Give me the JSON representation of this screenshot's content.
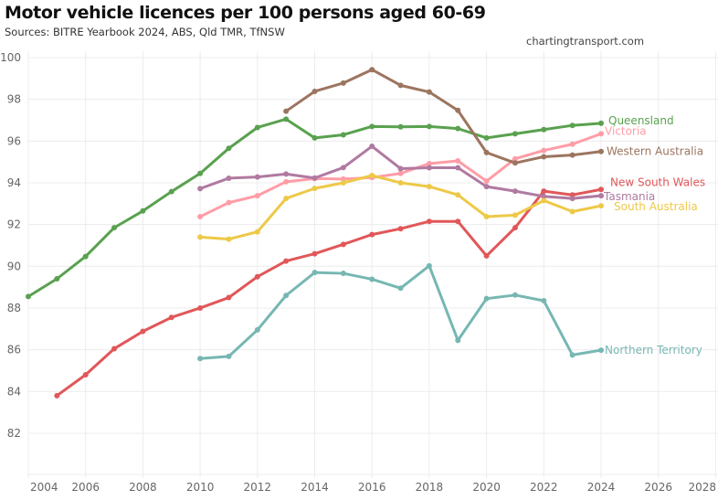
{
  "header": {
    "title": "Motor vehicle licences per 100 persons aged 60-69",
    "subtitle": "Sources: BITRE Yearbook 2024, ABS, Qld TMR, TfNSW",
    "credit": "chartingtransport.com"
  },
  "chart_data": {
    "type": "line",
    "title": "Motor vehicle licences per 100 persons aged 60-69",
    "subtitle": "Sources: BITRE Yearbook 2024, ABS, Qld TMR, TfNSW",
    "xlabel": "",
    "ylabel": "",
    "xlim": [
      2004,
      2028
    ],
    "ylim": [
      80,
      100
    ],
    "x_ticks": [
      "2004",
      "2006",
      "2008",
      "2010",
      "2012",
      "2014",
      "2016",
      "2018",
      "2020",
      "2022",
      "2024",
      "2026",
      "2028"
    ],
    "y_ticks": [
      "82",
      "84",
      "86",
      "88",
      "90",
      "92",
      "94",
      "96",
      "98",
      "100"
    ],
    "grid": true,
    "legend": "direct labels at right end of lines",
    "series": [
      {
        "name": "Queensland",
        "color": "#59a14f",
        "start_year": 2004,
        "values": [
          88.55,
          89.4,
          90.47,
          91.85,
          92.65,
          93.58,
          94.45,
          95.65,
          96.65,
          97.05,
          96.15,
          96.3,
          96.7,
          96.68,
          96.7,
          96.6,
          96.15,
          96.35,
          96.55,
          96.75,
          96.85
        ]
      },
      {
        "name": "Victoria",
        "color": "#ff9da7",
        "start_year": 2010,
        "values": [
          92.38,
          93.05,
          93.38,
          94.05,
          94.2,
          94.18,
          94.25,
          94.45,
          94.92,
          95.05,
          94.08,
          95.15,
          95.55,
          95.85,
          96.35
        ]
      },
      {
        "name": "Western Australia",
        "color": "#9c755f",
        "start_year": 2013,
        "values": [
          97.43,
          98.38,
          98.78,
          99.42,
          98.67,
          98.35,
          97.47,
          95.45,
          94.95,
          95.25,
          95.33,
          95.5
        ]
      },
      {
        "name": "New South Wales",
        "color": "#e15759",
        "start_year": 2005,
        "values": [
          83.8,
          84.8,
          86.05,
          86.88,
          87.55,
          88.0,
          88.5,
          89.5,
          90.25,
          90.6,
          91.05,
          91.52,
          91.8,
          92.15,
          92.15,
          90.5,
          91.85,
          93.6,
          93.42,
          93.68
        ]
      },
      {
        "name": "Tasmania",
        "color": "#b07aa1",
        "start_year": 2010,
        "values": [
          93.72,
          94.22,
          94.28,
          94.42,
          94.23,
          94.73,
          95.75,
          94.68,
          94.72,
          94.72,
          93.82,
          93.6,
          93.35,
          93.25,
          93.38
        ]
      },
      {
        "name": "South Australia",
        "color": "#edc948",
        "start_year": 2010,
        "values": [
          91.4,
          91.3,
          91.65,
          93.25,
          93.73,
          94.0,
          94.35,
          94.0,
          93.82,
          93.42,
          92.38,
          92.45,
          93.15,
          92.62,
          92.9
        ]
      },
      {
        "name": "Northern Territory",
        "color": "#76b7b2",
        "start_year": 2010,
        "values": [
          85.58,
          85.68,
          86.95,
          88.6,
          89.7,
          89.66,
          89.38,
          88.95,
          90.02,
          86.45,
          88.45,
          88.62,
          88.35,
          85.75,
          85.98
        ]
      }
    ]
  }
}
